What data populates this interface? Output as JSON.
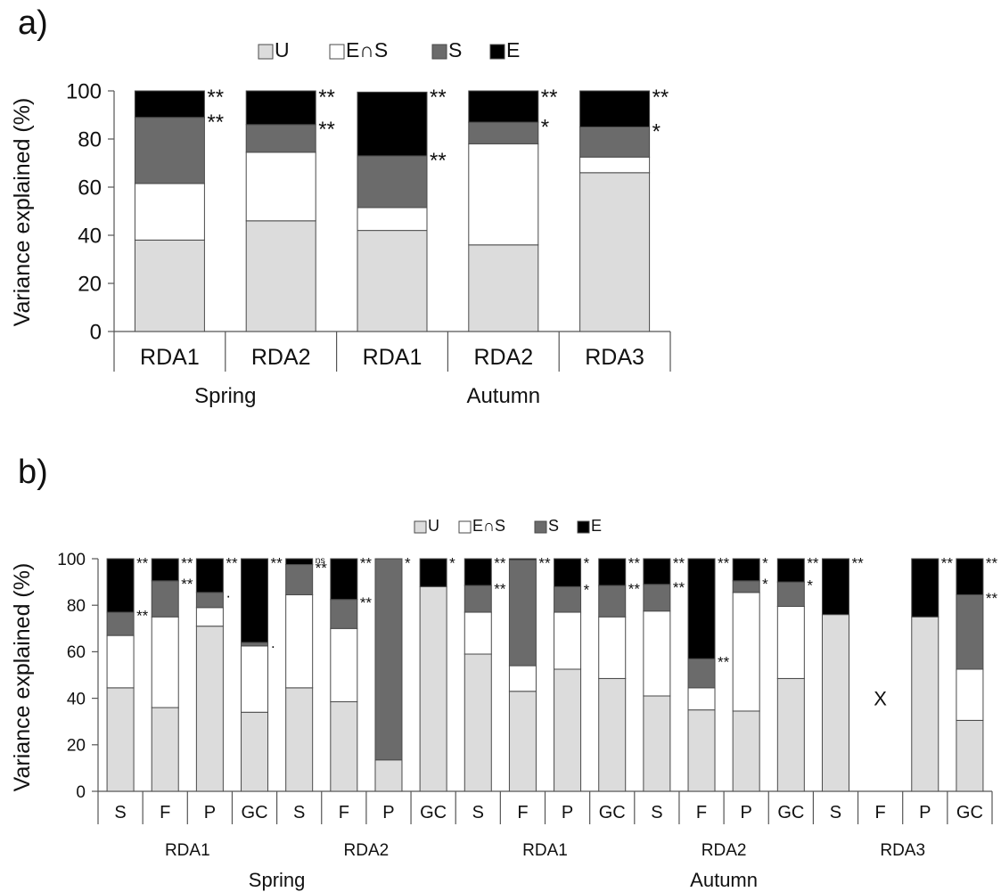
{
  "colors": {
    "U": "#dcdcdc",
    "EnS": "#ffffff",
    "S": "#6b6b6b",
    "E": "#000000",
    "stroke": "#4a4a4a"
  },
  "chart_data": [
    {
      "type": "bar",
      "panel_label": "a)",
      "ylabel": "Variance explained (%)",
      "ylim": [
        0,
        100
      ],
      "yticks": [
        "0",
        "20",
        "40",
        "60",
        "80",
        "100"
      ],
      "legend": [
        "U",
        "E∩S",
        "S",
        "E"
      ],
      "series": [
        {
          "name": "U",
          "values": [
            38,
            46,
            42,
            36,
            66
          ]
        },
        {
          "name": "E∩S",
          "values": [
            23.5,
            28.5,
            9.5,
            42,
            6.5
          ]
        },
        {
          "name": "S",
          "values": [
            27.5,
            11.5,
            21.5,
            9,
            12.5
          ]
        },
        {
          "name": "E",
          "values": [
            11,
            14,
            26.5,
            13,
            15
          ]
        }
      ],
      "categories": [
        "RDA1",
        "RDA2",
        "RDA1",
        "RDA2",
        "RDA3"
      ],
      "groups": [
        {
          "label": "Spring",
          "span": [
            0,
            1
          ]
        },
        {
          "label": "Autumn",
          "span": [
            2,
            4
          ]
        }
      ],
      "annotations": [
        {
          "bar": 0,
          "top": "**",
          "mid": "**"
        },
        {
          "bar": 1,
          "top": "**",
          "mid": "**"
        },
        {
          "bar": 2,
          "top": "**",
          "mid": "**"
        },
        {
          "bar": 3,
          "top": "**",
          "mid": "*"
        },
        {
          "bar": 4,
          "top": "**",
          "mid": "*"
        }
      ]
    },
    {
      "type": "bar",
      "panel_label": "b)",
      "ylabel": "Variance explained (%)",
      "ylim": [
        0,
        100
      ],
      "yticks": [
        "0",
        "20",
        "40",
        "60",
        "80",
        "100"
      ],
      "legend": [
        "U",
        "E∩S",
        "S",
        "E"
      ],
      "categories": [
        "S",
        "F",
        "P",
        "GC",
        "S",
        "F",
        "P",
        "GC",
        "S",
        "F",
        "P",
        "GC",
        "S",
        "F",
        "P",
        "GC",
        "S",
        "F",
        "P",
        "GC"
      ],
      "series": [
        {
          "name": "U",
          "values": [
            44.5,
            36,
            71,
            34,
            44.5,
            38.5,
            13.5,
            88,
            59,
            43,
            52.5,
            48.5,
            41,
            35,
            34.5,
            48.5,
            76,
            null,
            75,
            30.5
          ]
        },
        {
          "name": "E∩S",
          "values": [
            22.5,
            39,
            8,
            28.5,
            40,
            31.5,
            0,
            0,
            18,
            11,
            24.5,
            26.5,
            36.5,
            9.5,
            51,
            31,
            0,
            null,
            0,
            22
          ]
        },
        {
          "name": "S",
          "values": [
            10,
            15.5,
            6.5,
            1.5,
            13,
            12.5,
            86.5,
            0,
            11.5,
            45.5,
            11,
            13.5,
            11.5,
            12.5,
            5,
            10.5,
            0,
            null,
            0,
            32
          ]
        },
        {
          "name": "E",
          "values": [
            23,
            9.5,
            14.5,
            36,
            2.5,
            17.5,
            0,
            12,
            11.5,
            0.5,
            12,
            11.5,
            11,
            43,
            9.5,
            10,
            24,
            null,
            25,
            15.5
          ]
        }
      ],
      "missing_marker": {
        "bar": 17,
        "text": "X"
      },
      "subgroups": [
        {
          "label": "RDA1",
          "span": [
            0,
            3
          ]
        },
        {
          "label": "RDA2",
          "span": [
            4,
            7
          ]
        },
        {
          "label": "RDA1",
          "span": [
            8,
            11
          ]
        },
        {
          "label": "RDA2",
          "span": [
            12,
            15
          ]
        },
        {
          "label": "RDA3",
          "span": [
            16,
            19
          ]
        }
      ],
      "groups": [
        {
          "label": "Spring",
          "span": [
            0,
            7
          ]
        },
        {
          "label": "Autumn",
          "span": [
            8,
            19
          ]
        }
      ],
      "annotations": [
        {
          "bar": 0,
          "top": "**",
          "mid": "**"
        },
        {
          "bar": 1,
          "top": "**",
          "mid": "**"
        },
        {
          "bar": 2,
          "top": "**",
          "mid": "·"
        },
        {
          "bar": 3,
          "top": "**",
          "mid": "·"
        },
        {
          "bar": 4,
          "top": "ns",
          "mid": "**"
        },
        {
          "bar": 5,
          "top": "**",
          "mid": "**"
        },
        {
          "bar": 6,
          "top": "*",
          "mid": ""
        },
        {
          "bar": 7,
          "top": "*",
          "mid": ""
        },
        {
          "bar": 8,
          "top": "**",
          "mid": "**"
        },
        {
          "bar": 9,
          "top": "**",
          "mid": ""
        },
        {
          "bar": 10,
          "top": "*",
          "mid": "*"
        },
        {
          "bar": 11,
          "top": "**",
          "mid": "**"
        },
        {
          "bar": 12,
          "top": "**",
          "mid": "**"
        },
        {
          "bar": 13,
          "top": "**",
          "mid": "**"
        },
        {
          "bar": 14,
          "top": "*",
          "mid": "*"
        },
        {
          "bar": 15,
          "top": "**",
          "mid": "*"
        },
        {
          "bar": 16,
          "top": "**",
          "mid": ""
        },
        {
          "bar": 18,
          "top": "**",
          "mid": ""
        },
        {
          "bar": 19,
          "top": "**",
          "mid": "**"
        }
      ]
    }
  ]
}
